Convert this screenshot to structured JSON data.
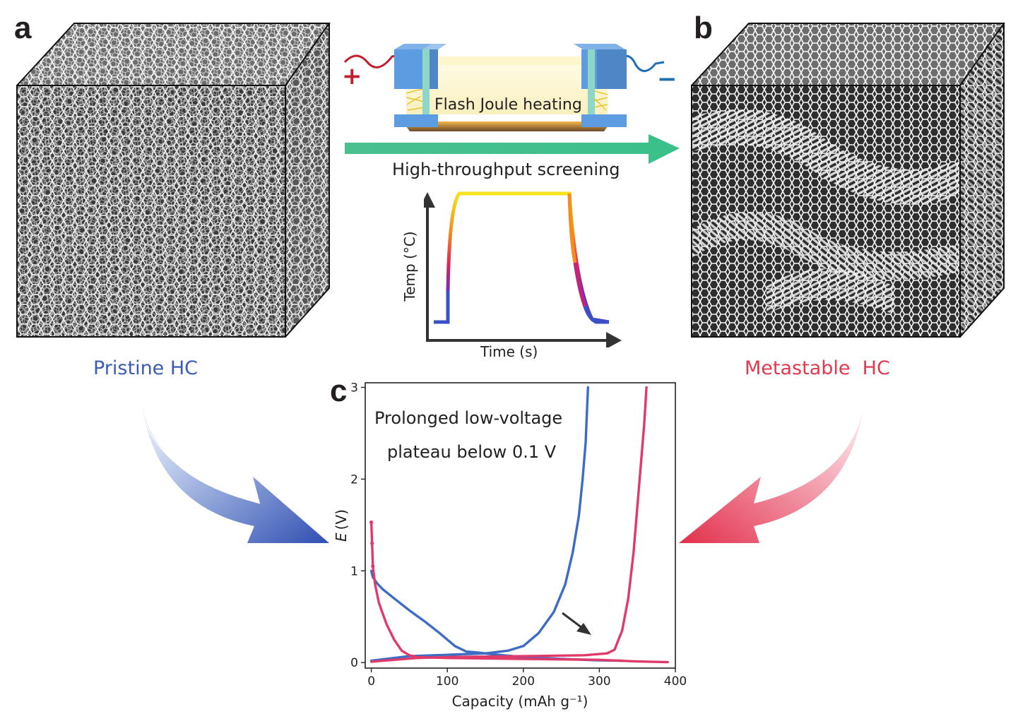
{
  "panels": {
    "a": {
      "letter": "a",
      "caption": "Pristine HC",
      "caption_color": "#3b5bb5"
    },
    "b": {
      "letter": "b",
      "caption": "Metastable  HC",
      "caption_color": "#e03a4e"
    },
    "c": {
      "letter": "c"
    }
  },
  "schematic": {
    "device_label": "Flash Joule heating",
    "plus": "+",
    "minus": "−",
    "arrow_label": "High-throughput screening",
    "arrow_color": "#3cc08a"
  },
  "temp_profile": {
    "ylabel": "Temp (°C)",
    "xlabel": "Time (s)"
  },
  "chart_data": {
    "type": "line",
    "xlabel": "Capacity (mAh g⁻¹)",
    "ylabel_italic": "E",
    "ylabel_unit": "(V)",
    "xlim": [
      -8,
      400
    ],
    "ylim": [
      -0.06,
      3.05
    ],
    "xticks": [
      "0",
      "100",
      "200",
      "300",
      "400"
    ],
    "xtick_values": [
      0,
      100,
      200,
      300,
      400
    ],
    "yticks": [
      "0",
      "1",
      "2",
      "3"
    ],
    "ytick_values": [
      0,
      1,
      2,
      3
    ],
    "annotation_line1": "Prolonged low-voltage",
    "annotation_line2": "plateau below 0.1 V",
    "series": [
      {
        "color": "#3d6cc4",
        "discharge": [
          [
            0,
            1.0
          ],
          [
            2,
            0.93
          ],
          [
            8,
            0.86
          ],
          [
            15,
            0.8
          ],
          [
            30,
            0.7
          ],
          [
            50,
            0.57
          ],
          [
            70,
            0.45
          ],
          [
            90,
            0.32
          ],
          [
            110,
            0.18
          ],
          [
            125,
            0.12
          ],
          [
            140,
            0.11
          ],
          [
            160,
            0.09
          ],
          [
            200,
            0.06
          ],
          [
            250,
            0.04
          ],
          [
            300,
            0.025
          ],
          [
            330,
            0.02
          ]
        ],
        "charge": [
          [
            0,
            0.02
          ],
          [
            20,
            0.04
          ],
          [
            50,
            0.07
          ],
          [
            100,
            0.085
          ],
          [
            150,
            0.1
          ],
          [
            180,
            0.13
          ],
          [
            200,
            0.18
          ],
          [
            220,
            0.32
          ],
          [
            240,
            0.55
          ],
          [
            255,
            0.85
          ],
          [
            265,
            1.2
          ],
          [
            273,
            1.6
          ],
          [
            278,
            2.0
          ],
          [
            282,
            2.4
          ],
          [
            285,
            3.0
          ]
        ]
      },
      {
        "color": "#e03a6a",
        "discharge": [
          [
            0,
            1.53
          ],
          [
            1,
            1.3
          ],
          [
            2,
            1.05
          ],
          [
            5,
            0.85
          ],
          [
            10,
            0.65
          ],
          [
            20,
            0.42
          ],
          [
            30,
            0.25
          ],
          [
            40,
            0.13
          ],
          [
            50,
            0.08
          ],
          [
            60,
            0.06
          ],
          [
            100,
            0.05
          ],
          [
            200,
            0.04
          ],
          [
            300,
            0.03
          ],
          [
            350,
            0.012
          ],
          [
            390,
            0.005
          ]
        ],
        "charge": [
          [
            0,
            0.01
          ],
          [
            30,
            0.03
          ],
          [
            60,
            0.05
          ],
          [
            100,
            0.06
          ],
          [
            200,
            0.07
          ],
          [
            280,
            0.08
          ],
          [
            310,
            0.1
          ],
          [
            320,
            0.14
          ],
          [
            330,
            0.35
          ],
          [
            338,
            0.7
          ],
          [
            345,
            1.2
          ],
          [
            350,
            1.7
          ],
          [
            355,
            2.2
          ],
          [
            359,
            2.6
          ],
          [
            362,
            3.0
          ]
        ]
      }
    ]
  }
}
